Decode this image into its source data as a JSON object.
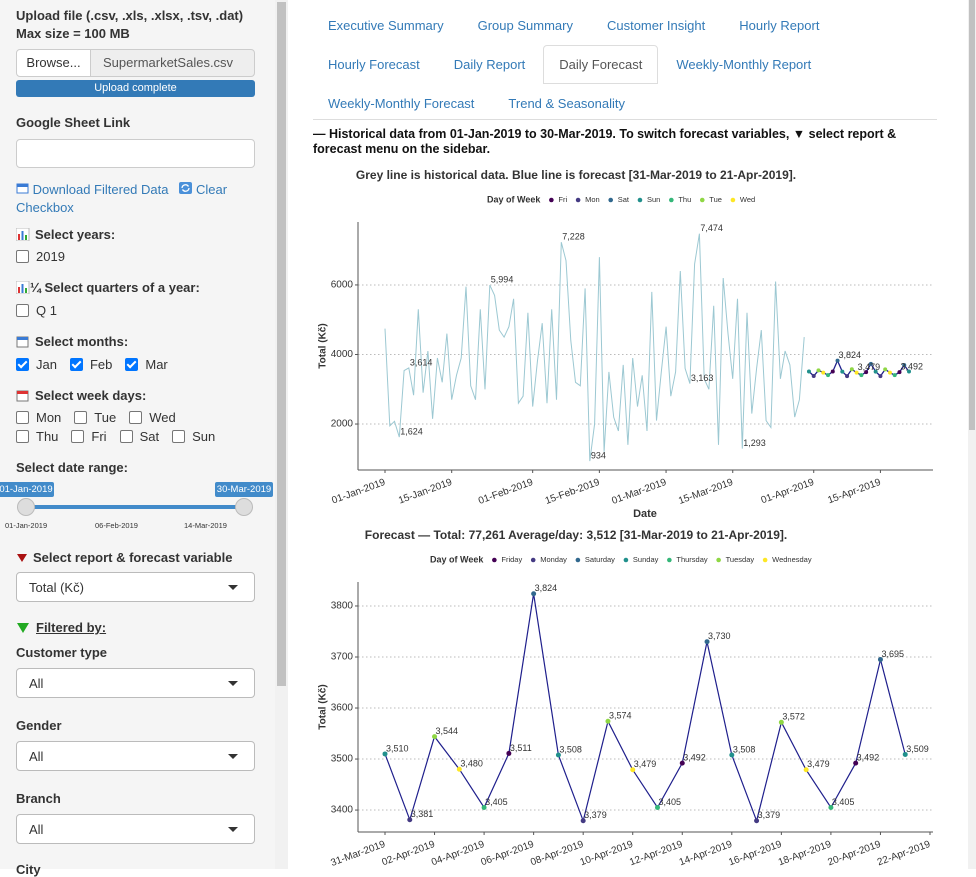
{
  "sidebar": {
    "upload": {
      "title": "Upload file (.csv, .xls, .xlsx, .tsv, .dat)",
      "max_size": "Max size = 100 MB",
      "button": "Browse...",
      "file": "SupermarketSales.csv",
      "progress": "Upload complete"
    },
    "google_sheet": {
      "label": "Google Sheet Link"
    },
    "download": "Download Filtered Data",
    "clear": "Clear Checkbox",
    "years": {
      "label": "Select years:",
      "options": [
        {
          "label": "2019",
          "checked": false
        }
      ]
    },
    "quarters": {
      "label": "¼ Select quarters of a year:",
      "options": [
        {
          "label": "Q 1",
          "checked": false
        }
      ]
    },
    "months": {
      "label": "Select months:",
      "options": [
        {
          "label": "Jan",
          "checked": true
        },
        {
          "label": "Feb",
          "checked": true
        },
        {
          "label": "Mar",
          "checked": true
        }
      ]
    },
    "week_days": {
      "label": "Select week days:",
      "options": [
        {
          "label": "Mon",
          "checked": false
        },
        {
          "label": "Tue",
          "checked": false
        },
        {
          "label": "Wed",
          "checked": false
        },
        {
          "label": "Thu",
          "checked": false
        },
        {
          "label": "Fri",
          "checked": false
        },
        {
          "label": "Sat",
          "checked": false
        },
        {
          "label": "Sun",
          "checked": false
        }
      ]
    },
    "date_range": {
      "label": "Select date range:",
      "from": "01-Jan-2019",
      "to": "30-Mar-2019",
      "ticks": [
        "01-Jan-2019",
        "06-Feb-2019",
        "14-Mar-2019"
      ]
    },
    "variable": {
      "label": "Select report & forecast variable",
      "value": "Total (Kč)"
    },
    "filtered_by": "Filtered by:",
    "filters": [
      {
        "label": "Customer type",
        "value": "All"
      },
      {
        "label": "Gender",
        "value": "All"
      },
      {
        "label": "Branch",
        "value": "All"
      },
      {
        "label": "City"
      }
    ]
  },
  "tabs": [
    {
      "label": "Executive Summary",
      "active": false
    },
    {
      "label": "Group Summary",
      "active": false
    },
    {
      "label": "Customer Insight",
      "active": false
    },
    {
      "label": "Hourly Report",
      "active": false
    },
    {
      "label": "Hourly Forecast",
      "active": false
    },
    {
      "label": "Daily Report",
      "active": false
    },
    {
      "label": "Daily Forecast",
      "active": true
    },
    {
      "label": "Weekly-Monthly Report",
      "active": false
    },
    {
      "label": "Weekly-Monthly Forecast",
      "active": false
    },
    {
      "label": "Trend & Seasonality",
      "active": false
    }
  ],
  "header": "— Historical data from 01-Jan-2019 to 30-Mar-2019. To switch forecast variables, ▼ select report & forecast menu on the sidebar.",
  "chart_data": [
    {
      "type": "line",
      "title": "Grey line is historical data. Blue line is forecast [31-Mar-2019 to 21-Apr-2019].",
      "x_label": "Date",
      "y_label": "Total (Kč)",
      "grid": true,
      "legend": {
        "title": "Day of Week",
        "items": [
          {
            "name": "Fri",
            "color": "#440154"
          },
          {
            "name": "Mon",
            "color": "#443A83"
          },
          {
            "name": "Sat",
            "color": "#31688E"
          },
          {
            "name": "Sun",
            "color": "#21908C"
          },
          {
            "name": "Thu",
            "color": "#35B779"
          },
          {
            "name": "Tue",
            "color": "#8FD744"
          },
          {
            "name": "Wed",
            "color": "#FDE725"
          }
        ]
      },
      "xlim": [
        "2019-01-01",
        "2019-04-21"
      ],
      "xticks": [
        {
          "value": "2019-01-01",
          "label": "01-Jan-2019"
        },
        {
          "value": "2019-01-15",
          "label": "15-Jan-2019"
        },
        {
          "value": "2019-02-01",
          "label": "01-Feb-2019"
        },
        {
          "value": "2019-02-15",
          "label": "15-Feb-2019"
        },
        {
          "value": "2019-03-01",
          "label": "01-Mar-2019"
        },
        {
          "value": "2019-03-15",
          "label": "15-Mar-2019"
        },
        {
          "value": "2019-04-01",
          "label": "01-Apr-2019"
        },
        {
          "value": "2019-04-15",
          "label": "15-Apr-2019"
        }
      ],
      "ylim": [
        678,
        7810
      ],
      "yticks": [
        2000,
        4000,
        6000
      ],
      "series": [
        {
          "color": "#9cc8d2",
          "x": [
            "2019-01-01",
            "2019-01-02",
            "2019-01-03",
            "2019-01-04",
            "2019-01-05",
            "2019-01-06",
            "2019-01-07",
            "2019-01-08",
            "2019-01-09",
            "2019-01-10",
            "2019-01-11",
            "2019-01-12",
            "2019-01-13",
            "2019-01-14",
            "2019-01-15",
            "2019-01-16",
            "2019-01-17",
            "2019-01-18",
            "2019-01-19",
            "2019-01-20",
            "2019-01-21",
            "2019-01-22",
            "2019-01-23",
            "2019-01-24",
            "2019-01-25",
            "2019-01-26",
            "2019-01-27",
            "2019-01-28",
            "2019-01-29",
            "2019-01-30",
            "2019-01-31",
            "2019-02-01",
            "2019-02-02",
            "2019-02-03",
            "2019-02-04",
            "2019-02-05",
            "2019-02-06",
            "2019-02-07",
            "2019-02-08",
            "2019-02-09",
            "2019-02-10",
            "2019-02-11",
            "2019-02-12",
            "2019-02-13",
            "2019-02-14",
            "2019-02-15",
            "2019-02-16",
            "2019-02-17",
            "2019-02-18",
            "2019-02-19",
            "2019-02-20",
            "2019-02-21",
            "2019-02-22",
            "2019-02-23",
            "2019-02-24",
            "2019-02-25",
            "2019-02-26",
            "2019-02-27",
            "2019-02-28",
            "2019-03-01",
            "2019-03-02",
            "2019-03-03",
            "2019-03-04",
            "2019-03-05",
            "2019-03-06",
            "2019-03-07",
            "2019-03-08",
            "2019-03-09",
            "2019-03-10",
            "2019-03-11",
            "2019-03-12",
            "2019-03-13",
            "2019-03-14",
            "2019-03-15",
            "2019-03-16",
            "2019-03-17",
            "2019-03-18",
            "2019-03-19",
            "2019-03-20",
            "2019-03-21",
            "2019-03-22",
            "2019-03-23",
            "2019-03-24",
            "2019-03-25",
            "2019-03-26",
            "2019-03-27",
            "2019-03-28",
            "2019-03-29",
            "2019-03-30"
          ],
          "values": [
            4745,
            1946,
            2078,
            1624,
            3536,
            3614,
            2829,
            5300,
            2900,
            4100,
            2150,
            3900,
            3200,
            4600,
            2700,
            3400,
            3900,
            5950,
            3100,
            2700,
            5300,
            3000,
            5994,
            5700,
            4700,
            4500,
            4800,
            5600,
            2600,
            2800,
            5200,
            2500,
            3800,
            4900,
            2600,
            5300,
            2700,
            7228,
            6700,
            4400,
            3200,
            3100,
            5900,
            934,
            2000,
            6800,
            1200,
            3500,
            2200,
            1800,
            3700,
            1400,
            3900,
            2500,
            3400,
            1800,
            5800,
            2100,
            3500,
            4800,
            2800,
            3500,
            6400,
            3600,
            3163,
            6600,
            7474,
            3300,
            3000,
            5400,
            1400,
            6200,
            4600,
            3300,
            5600,
            1293,
            5200,
            2300,
            3600,
            4700,
            2100,
            1900,
            6100,
            3300,
            4100,
            3700,
            2200,
            2700,
            4500
          ],
          "value_labels": [
            null,
            null,
            null,
            "1,624",
            null,
            "3,614",
            null,
            null,
            null,
            null,
            null,
            null,
            null,
            null,
            null,
            null,
            null,
            null,
            null,
            null,
            null,
            null,
            "5,994",
            null,
            null,
            null,
            null,
            null,
            null,
            null,
            null,
            null,
            null,
            null,
            null,
            null,
            null,
            "7,228",
            null,
            null,
            null,
            null,
            null,
            "934",
            null,
            null,
            null,
            null,
            null,
            null,
            null,
            null,
            null,
            null,
            null,
            null,
            null,
            null,
            null,
            null,
            null,
            null,
            null,
            null,
            "3,163",
            null,
            "7,474",
            null,
            null,
            null,
            null,
            null,
            null,
            null,
            null,
            "1,293",
            null,
            null,
            null,
            null,
            null,
            null,
            null,
            null,
            null,
            null,
            null,
            null,
            null
          ]
        },
        {
          "color": "#1f1f8c",
          "x": [
            "2019-03-31",
            "2019-04-01",
            "2019-04-02",
            "2019-04-03",
            "2019-04-04",
            "2019-04-05",
            "2019-04-06",
            "2019-04-07",
            "2019-04-08",
            "2019-04-09",
            "2019-04-10",
            "2019-04-11",
            "2019-04-12",
            "2019-04-13",
            "2019-04-14",
            "2019-04-15",
            "2019-04-16",
            "2019-04-17",
            "2019-04-18",
            "2019-04-19",
            "2019-04-20",
            "2019-04-21"
          ],
          "values": [
            3510,
            3381,
            3544,
            3480,
            3405,
            3511,
            3824,
            3508,
            3379,
            3574,
            3479,
            3405,
            3492,
            3730,
            3508,
            3379,
            3572,
            3479,
            3405,
            3492,
            3695,
            3509
          ],
          "value_labels": [
            null,
            null,
            null,
            null,
            null,
            null,
            "3,824",
            null,
            null,
            null,
            "3,479",
            null,
            null,
            null,
            null,
            null,
            null,
            null,
            null,
            "3,492",
            null,
            null
          ],
          "point_colors": [
            "#21908C",
            "#443A83",
            "#8FD744",
            "#FDE725",
            "#35B779",
            "#440154",
            "#31688E",
            "#21908C",
            "#443A83",
            "#8FD744",
            "#FDE725",
            "#35B779",
            "#440154",
            "#31688E",
            "#21908C",
            "#443A83",
            "#8FD744",
            "#FDE725",
            "#35B779",
            "#440154",
            "#31688E",
            "#21908C"
          ]
        }
      ]
    },
    {
      "type": "line",
      "title": "Forecast — Total: 77,261  Average/day: 3,512  [31-Mar-2019 to 21-Apr-2019].",
      "y_label": "Total (Kč)",
      "grid": true,
      "legend": {
        "title": "Day of Week",
        "items": [
          {
            "name": "Friday",
            "color": "#440154"
          },
          {
            "name": "Monday",
            "color": "#443A83"
          },
          {
            "name": "Saturday",
            "color": "#31688E"
          },
          {
            "name": "Sunday",
            "color": "#21908C"
          },
          {
            "name": "Thursday",
            "color": "#35B779"
          },
          {
            "name": "Tuesday",
            "color": "#8FD744"
          },
          {
            "name": "Wednesday",
            "color": "#FDE725"
          }
        ]
      },
      "xlim": [
        "2019-03-31",
        "2019-04-22"
      ],
      "xticks": [
        {
          "value": "2019-03-31",
          "label": "31-Mar-2019"
        },
        {
          "value": "2019-04-02",
          "label": "02-Apr-2019"
        },
        {
          "value": "2019-04-04",
          "label": "04-Apr-2019"
        },
        {
          "value": "2019-04-06",
          "label": "06-Apr-2019"
        },
        {
          "value": "2019-04-08",
          "label": "08-Apr-2019"
        },
        {
          "value": "2019-04-10",
          "label": "10-Apr-2019"
        },
        {
          "value": "2019-04-12",
          "label": "12-Apr-2019"
        },
        {
          "value": "2019-04-14",
          "label": "14-Apr-2019"
        },
        {
          "value": "2019-04-16",
          "label": "16-Apr-2019"
        },
        {
          "value": "2019-04-18",
          "label": "18-Apr-2019"
        },
        {
          "value": "2019-04-20",
          "label": "20-Apr-2019"
        },
        {
          "value": "2019-04-22",
          "label": "22-Apr-2019"
        }
      ],
      "ylim": [
        3357,
        3847
      ],
      "yticks": [
        3400,
        3500,
        3600,
        3700,
        3800
      ],
      "series": [
        {
          "color": "#1f1f8c",
          "x": [
            "2019-03-31",
            "2019-04-01",
            "2019-04-02",
            "2019-04-03",
            "2019-04-04",
            "2019-04-05",
            "2019-04-06",
            "2019-04-07",
            "2019-04-08",
            "2019-04-09",
            "2019-04-10",
            "2019-04-11",
            "2019-04-12",
            "2019-04-13",
            "2019-04-14",
            "2019-04-15",
            "2019-04-16",
            "2019-04-17",
            "2019-04-18",
            "2019-04-19",
            "2019-04-20",
            "2019-04-21"
          ],
          "values": [
            3510,
            3381,
            3544,
            3480,
            3405,
            3511,
            3824,
            3508,
            3379,
            3574,
            3479,
            3405,
            3492,
            3730,
            3508,
            3379,
            3572,
            3479,
            3405,
            3492,
            3695,
            3509
          ],
          "value_labels": [
            "3,510",
            "3,381",
            "3,544",
            "3,480",
            "3,405",
            "3,511",
            "3,824",
            "3,508",
            "3,379",
            "3,574",
            "3,479",
            "3,405",
            "3,492",
            "3,730",
            "3,508",
            "3,379",
            "3,572",
            "3,479",
            "3,405",
            "3,492",
            "3,695",
            "3,509"
          ],
          "point_colors": [
            "#21908C",
            "#443A83",
            "#8FD744",
            "#FDE725",
            "#35B779",
            "#440154",
            "#31688E",
            "#21908C",
            "#443A83",
            "#8FD744",
            "#FDE725",
            "#35B779",
            "#440154",
            "#31688E",
            "#21908C",
            "#443A83",
            "#8FD744",
            "#FDE725",
            "#35B779",
            "#440154",
            "#31688E",
            "#21908C"
          ]
        }
      ]
    }
  ]
}
